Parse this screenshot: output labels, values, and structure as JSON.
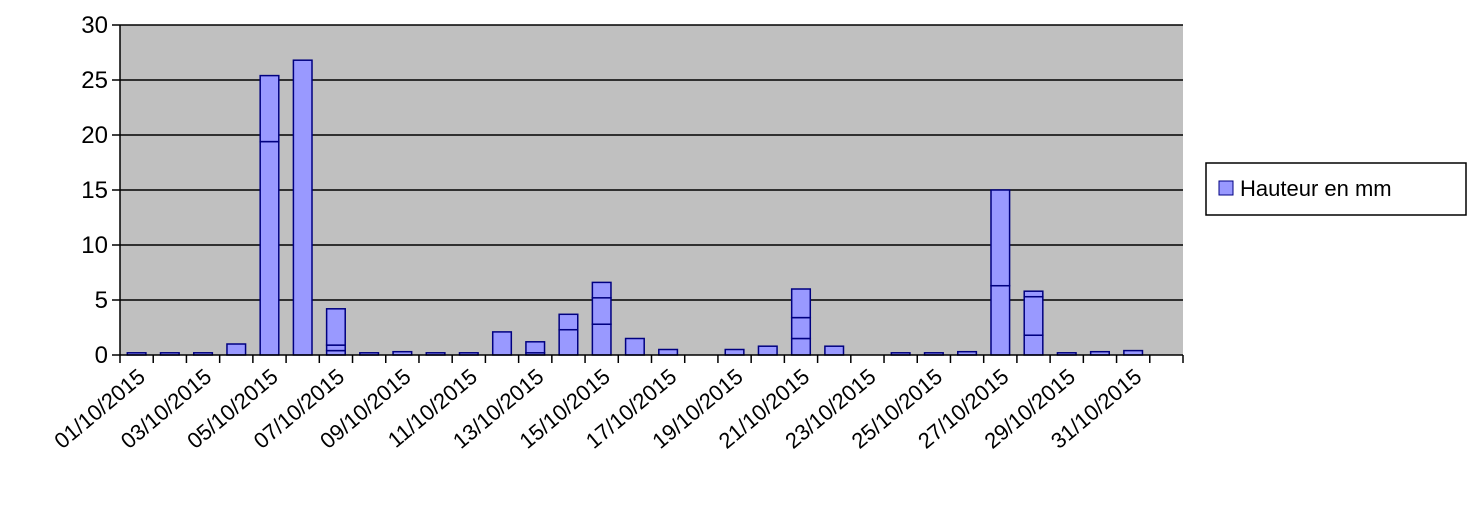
{
  "chart_data": {
    "type": "bar",
    "stacked": true,
    "title": "",
    "xlabel": "",
    "ylabel": "",
    "ylim": [
      0,
      30
    ],
    "yticks": [
      0,
      5,
      10,
      15,
      20,
      25,
      30
    ],
    "grid": true,
    "legend_position": "right",
    "colors": {
      "plot_background": "#c0c0c0",
      "bar_fill": "#9999ff",
      "bar_stroke": "#000080",
      "gridline": "#000000"
    },
    "categories": [
      "01/10/2015",
      "02/10/2015",
      "03/10/2015",
      "04/10/2015",
      "05/10/2015",
      "06/10/2015",
      "07/10/2015",
      "08/10/2015",
      "09/10/2015",
      "10/10/2015",
      "11/10/2015",
      "12/10/2015",
      "13/10/2015",
      "14/10/2015",
      "15/10/2015",
      "16/10/2015",
      "17/10/2015",
      "18/10/2015",
      "19/10/2015",
      "20/10/2015",
      "21/10/2015",
      "22/10/2015",
      "23/10/2015",
      "24/10/2015",
      "25/10/2015",
      "26/10/2015",
      "27/10/2015",
      "28/10/2015",
      "29/10/2015",
      "30/10/2015",
      "31/10/2015",
      "01/11/2015"
    ],
    "x_tick_labels": [
      "01/10/2015",
      "03/10/2015",
      "05/10/2015",
      "07/10/2015",
      "09/10/2015",
      "11/10/2015",
      "13/10/2015",
      "15/10/2015",
      "17/10/2015",
      "19/10/2015",
      "21/10/2015",
      "23/10/2015",
      "25/10/2015",
      "27/10/2015",
      "29/10/2015",
      "31/10/2015"
    ],
    "legend": [
      {
        "label": "Hauteur en mm"
      }
    ],
    "segments": [
      [
        0.2
      ],
      [
        0.2
      ],
      [
        0.2
      ],
      [
        1.0
      ],
      [
        19.4,
        6.0
      ],
      [
        26.8
      ],
      [
        0.4,
        0.5,
        3.3
      ],
      [
        0.2
      ],
      [
        0.3
      ],
      [
        0.2
      ],
      [
        0.2
      ],
      [
        2.1
      ],
      [
        0.2,
        1.0
      ],
      [
        2.3,
        1.4
      ],
      [
        2.8,
        2.4,
        1.4
      ],
      [
        1.5
      ],
      [
        0.5
      ],
      [
        0
      ],
      [
        0.5
      ],
      [
        0.8
      ],
      [
        1.5,
        1.9,
        2.6
      ],
      [
        0.8
      ],
      [
        0
      ],
      [
        0.2
      ],
      [
        0.2
      ],
      [
        0.3
      ],
      [
        6.3,
        8.7
      ],
      [
        1.8,
        3.5,
        0.5
      ],
      [
        0.2
      ],
      [
        0.3
      ],
      [
        0.4
      ],
      [
        0
      ]
    ],
    "totals": [
      0.2,
      0.2,
      0.2,
      1.0,
      25.4,
      26.8,
      4.2,
      0.2,
      0.3,
      0.2,
      0.2,
      2.1,
      1.2,
      3.7,
      6.6,
      1.5,
      0.5,
      0,
      0.5,
      0.8,
      6.0,
      0.8,
      0,
      0.2,
      0.2,
      0.3,
      15.0,
      5.8,
      0.2,
      0.3,
      0.4,
      0
    ]
  }
}
